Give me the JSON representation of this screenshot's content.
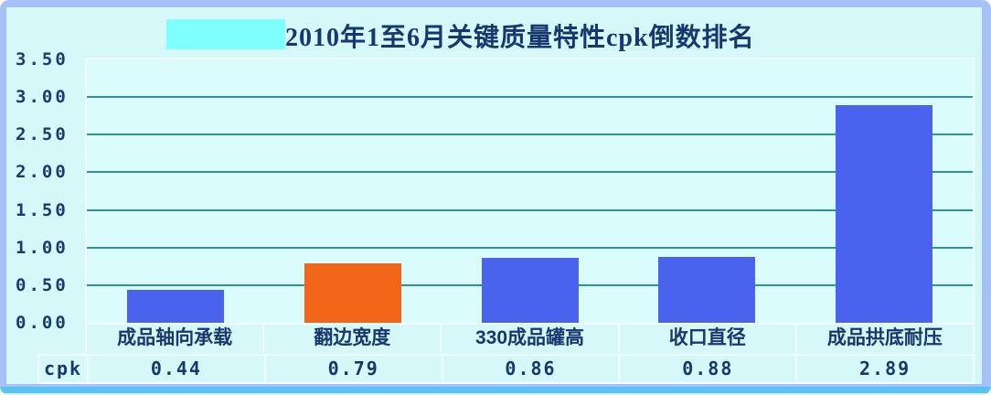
{
  "title": "2010年1至6月关键质量特性cpk倒数排名",
  "colors": {
    "frame": "#a6c1f7",
    "background": "#d6f8f8",
    "plot_background": "#dbfcfc",
    "gridline": "#2f9494",
    "cell_border": "#f2feff",
    "text": "#17386f",
    "bar_blue": "#4a63ee",
    "bar_orange": "#f2661a",
    "title_highlight": "#80ffff",
    "bottom_strip": "#58c3f3"
  },
  "chart_data": {
    "type": "bar",
    "title": "2010年1至6月关键质量特性cpk倒数排名",
    "categories": [
      "成品轴向承载",
      "翻边宽度",
      "330成品罐高",
      "收口直径",
      "成品拱底耐压"
    ],
    "values": [
      0.44,
      0.79,
      0.86,
      0.88,
      2.89
    ],
    "bar_colors": [
      "#4a63ee",
      "#f2661a",
      "#4a63ee",
      "#4a63ee",
      "#4a63ee"
    ],
    "xlabel": "",
    "ylabel": "",
    "ylim": [
      0,
      3.5
    ],
    "ytick_labels": [
      "3.50",
      "3.00",
      "2.50",
      "2.00",
      "1.50",
      "1.00",
      "0.50",
      "0.00"
    ],
    "grid": true,
    "legend": false,
    "data_table": {
      "row_label": "cpk",
      "row_values": [
        "0.44",
        "0.79",
        "0.86",
        "0.88",
        "2.89"
      ]
    }
  }
}
